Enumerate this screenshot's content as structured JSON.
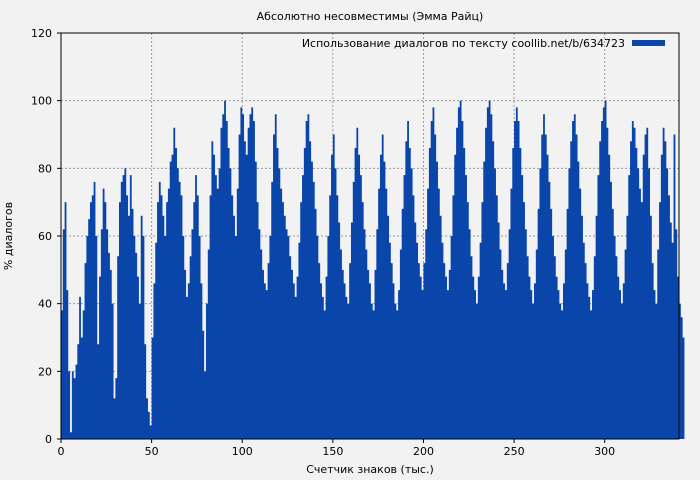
{
  "chart_data": {
    "type": "area",
    "title": "Абсолютно несовместимы (Эмма Райц)",
    "xlabel": "Счетчик знаков (тыс.)",
    "ylabel": "% диалогов",
    "xlim": [
      0,
      341
    ],
    "ylim": [
      0,
      120
    ],
    "xticks": [
      0,
      50,
      100,
      150,
      200,
      250,
      300
    ],
    "yticks": [
      0,
      20,
      40,
      60,
      80,
      100,
      120
    ],
    "grid": true,
    "legend_position": "top-right",
    "series": [
      {
        "name": "Использование диалогов по тексту coollib.net/b/634723",
        "color": "#0a46aa",
        "x_step": 1,
        "values": [
          38,
          62,
          70,
          44,
          20,
          2,
          20,
          18,
          22,
          28,
          42,
          30,
          38,
          52,
          60,
          65,
          70,
          72,
          76,
          60,
          28,
          48,
          62,
          74,
          70,
          62,
          55,
          50,
          40,
          12,
          18,
          54,
          70,
          76,
          78,
          80,
          72,
          66,
          78,
          68,
          60,
          55,
          48,
          40,
          66,
          60,
          28,
          12,
          8,
          4,
          30,
          46,
          58,
          70,
          76,
          72,
          66,
          60,
          70,
          74,
          82,
          84,
          92,
          86,
          80,
          76,
          72,
          60,
          50,
          42,
          46,
          54,
          62,
          70,
          78,
          72,
          60,
          46,
          32,
          20,
          40,
          56,
          72,
          88,
          84,
          78,
          74,
          80,
          92,
          96,
          100,
          94,
          86,
          80,
          72,
          66,
          60,
          74,
          90,
          98,
          96,
          88,
          84,
          92,
          96,
          98,
          94,
          82,
          70,
          62,
          56,
          50,
          46,
          44,
          52,
          60,
          76,
          90,
          96,
          86,
          80,
          74,
          70,
          66,
          62,
          60,
          54,
          50,
          46,
          42,
          48,
          58,
          70,
          78,
          86,
          94,
          96,
          88,
          82,
          76,
          68,
          60,
          52,
          46,
          42,
          38,
          48,
          60,
          72,
          84,
          90,
          80,
          72,
          64,
          56,
          50,
          46,
          42,
          40,
          52,
          64,
          76,
          86,
          92,
          84,
          78,
          70,
          62,
          56,
          50,
          46,
          40,
          38,
          50,
          62,
          74,
          84,
          90,
          82,
          74,
          66,
          58,
          52,
          46,
          40,
          38,
          44,
          56,
          68,
          78,
          88,
          94,
          86,
          80,
          72,
          64,
          58,
          52,
          48,
          44,
          52,
          62,
          74,
          86,
          94,
          98,
          90,
          82,
          74,
          66,
          58,
          52,
          48,
          44,
          50,
          60,
          72,
          84,
          92,
          98,
          100,
          94,
          86,
          78,
          70,
          62,
          54,
          48,
          44,
          40,
          48,
          58,
          70,
          82,
          92,
          98,
          100,
          96,
          88,
          80,
          72,
          64,
          56,
          50,
          46,
          44,
          52,
          62,
          74,
          86,
          94,
          98,
          94,
          86,
          78,
          70,
          62,
          54,
          48,
          44,
          40,
          46,
          56,
          68,
          80,
          90,
          96,
          90,
          84,
          76,
          68,
          60,
          54,
          48,
          44,
          40,
          38,
          46,
          56,
          68,
          80,
          88,
          94,
          96,
          90,
          82,
          74,
          66,
          58,
          52,
          46,
          42,
          38,
          44,
          54,
          66,
          78,
          88,
          94,
          98,
          100,
          92,
          84,
          76,
          68,
          60,
          54,
          48,
          44,
          40,
          46,
          56,
          66,
          78,
          88,
          94,
          92,
          86,
          80,
          74,
          70,
          84,
          90,
          92,
          80,
          66,
          52,
          44,
          40,
          56,
          70,
          84,
          92,
          88,
          80,
          72,
          64,
          58,
          90,
          62,
          48,
          40,
          36,
          30
        ]
      }
    ]
  }
}
